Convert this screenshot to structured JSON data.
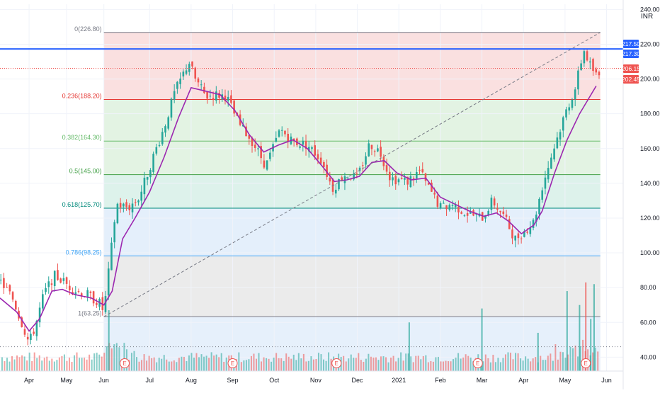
{
  "currency_label": "INR",
  "colors": {
    "up": "#26a69a",
    "down": "#ef5350",
    "ma_line": "#9c27b0",
    "resistance_line": "#2962ff",
    "diagonal": "#787b86",
    "zone_red": "#f8d6d6",
    "zone_green": "#d9efd9",
    "zone_teal": "#d2ede4",
    "zone_blue": "#dbeaf9",
    "zone_gray": "#e4e4e4"
  },
  "fib_levels": [
    {
      "label": "0(226.80)",
      "ratio": 0,
      "price": 226.8,
      "color": "#787b86"
    },
    {
      "label": "0.236(188.20)",
      "ratio": 0.236,
      "price": 188.2,
      "color": "#e53935"
    },
    {
      "label": "0.382(164.30)",
      "ratio": 0.382,
      "price": 164.3,
      "color": "#66bb6a"
    },
    {
      "label": "0.5(145.00)",
      "ratio": 0.5,
      "price": 145.0,
      "color": "#43a047"
    },
    {
      "label": "0.618(125.70)",
      "ratio": 0.618,
      "price": 125.7,
      "color": "#00897b"
    },
    {
      "label": "0.786(98.25)",
      "ratio": 0.786,
      "price": 98.25,
      "color": "#42a5f5"
    },
    {
      "label": "1(63.25)",
      "ratio": 1,
      "price": 63.25,
      "color": "#787b86"
    }
  ],
  "price_badges": [
    {
      "text": "217.50",
      "price": 217.5,
      "color": "#2962ff"
    },
    {
      "text": "217.30",
      "price": 217.3,
      "color": "#2962ff"
    },
    {
      "text": "206.15",
      "price": 206.15,
      "color": "#ef5350"
    },
    {
      "text": "202.45",
      "price": 202.45,
      "color": "#ef5350"
    }
  ],
  "earnings_marker": "E",
  "earnings_months": [
    3,
    5.6,
    8.1,
    11.5,
    14.1
  ],
  "chart_data": {
    "type": "candlestick",
    "y_axis_ticks": [
      "240.00",
      "220.00",
      "200.00",
      "180.00",
      "160.00",
      "140.00",
      "120.00",
      "100.00",
      "80.00",
      "60.00",
      "40.00"
    ],
    "y_tick_values": [
      240,
      220,
      200,
      180,
      160,
      140,
      120,
      100,
      80,
      60,
      40
    ],
    "ylim": [
      32,
      243
    ],
    "x_axis_ticks": [
      "Apr",
      "May",
      "Jun",
      "Jul",
      "Aug",
      "Sep",
      "Oct",
      "Nov",
      "Dec",
      "2021",
      "Feb",
      "Mar",
      "Apr",
      "May",
      "Jun"
    ],
    "x_tick_index": [
      0.7,
      1.6,
      2.5,
      3.6,
      4.6,
      5.6,
      6.6,
      7.6,
      8.6,
      9.6,
      10.6,
      11.6,
      12.6,
      13.6,
      14.6
    ],
    "xlim": [
      0,
      15.0
    ],
    "price_path": [
      [
        0,
        84
      ],
      [
        0.3,
        74
      ],
      [
        0.55,
        58
      ],
      [
        0.7,
        48
      ],
      [
        0.85,
        58
      ],
      [
        1.05,
        76
      ],
      [
        1.3,
        87
      ],
      [
        1.5,
        84
      ],
      [
        1.75,
        79
      ],
      [
        2.1,
        76
      ],
      [
        2.4,
        71
      ],
      [
        2.5,
        66
      ],
      [
        2.65,
        96
      ],
      [
        2.8,
        128
      ],
      [
        3.1,
        126
      ],
      [
        3.35,
        132
      ],
      [
        3.7,
        156
      ],
      [
        3.95,
        172
      ],
      [
        4.2,
        192
      ],
      [
        4.55,
        210
      ],
      [
        4.7,
        200
      ],
      [
        4.95,
        190
      ],
      [
        5.25,
        191
      ],
      [
        5.45,
        190
      ],
      [
        5.75,
        174
      ],
      [
        6.05,
        165
      ],
      [
        6.4,
        150
      ],
      [
        6.75,
        171
      ],
      [
        7.05,
        164
      ],
      [
        7.4,
        162
      ],
      [
        7.75,
        153
      ],
      [
        8.0,
        137
      ],
      [
        8.3,
        145
      ],
      [
        8.6,
        143
      ],
      [
        8.9,
        163
      ],
      [
        9.15,
        158
      ],
      [
        9.4,
        143
      ],
      [
        9.8,
        141
      ],
      [
        10.1,
        147
      ],
      [
        10.3,
        138
      ],
      [
        10.6,
        126
      ],
      [
        10.9,
        128
      ],
      [
        11.2,
        123
      ],
      [
        11.6,
        120
      ],
      [
        11.85,
        130
      ],
      [
        12.1,
        122
      ],
      [
        12.4,
        108
      ],
      [
        12.6,
        112
      ],
      [
        12.85,
        118
      ],
      [
        13.05,
        138
      ],
      [
        13.3,
        158
      ],
      [
        13.6,
        180
      ],
      [
        13.85,
        195
      ],
      [
        14.05,
        217
      ],
      [
        14.2,
        208
      ],
      [
        14.35,
        202
      ]
    ],
    "ma_path": [
      [
        0,
        74
      ],
      [
        0.4,
        66
      ],
      [
        0.7,
        55
      ],
      [
        0.95,
        62
      ],
      [
        1.25,
        78
      ],
      [
        1.5,
        79
      ],
      [
        1.8,
        76
      ],
      [
        2.2,
        74
      ],
      [
        2.5,
        70
      ],
      [
        2.7,
        78
      ],
      [
        2.95,
        108
      ],
      [
        3.25,
        120
      ],
      [
        3.6,
        135
      ],
      [
        3.95,
        155
      ],
      [
        4.3,
        178
      ],
      [
        4.6,
        195
      ],
      [
        4.95,
        193
      ],
      [
        5.3,
        191
      ],
      [
        5.65,
        182
      ],
      [
        6.0,
        168
      ],
      [
        6.35,
        158
      ],
      [
        6.7,
        162
      ],
      [
        7.05,
        165
      ],
      [
        7.4,
        160
      ],
      [
        7.75,
        150
      ],
      [
        8.05,
        141
      ],
      [
        8.35,
        142
      ],
      [
        8.65,
        144
      ],
      [
        8.95,
        152
      ],
      [
        9.25,
        153
      ],
      [
        9.55,
        146
      ],
      [
        9.9,
        142
      ],
      [
        10.25,
        143
      ],
      [
        10.6,
        132
      ],
      [
        10.95,
        128
      ],
      [
        11.3,
        124
      ],
      [
        11.65,
        121
      ],
      [
        11.95,
        123
      ],
      [
        12.25,
        118
      ],
      [
        12.55,
        111
      ],
      [
        12.85,
        116
      ],
      [
        13.05,
        124
      ],
      [
        13.35,
        146
      ],
      [
        13.65,
        165
      ],
      [
        13.95,
        180
      ],
      [
        14.2,
        190
      ],
      [
        14.35,
        196
      ]
    ],
    "volume_spikes": [
      {
        "month": 2.62,
        "level": 67
      },
      {
        "month": 9.85,
        "level": 60
      },
      {
        "month": 11.6,
        "level": 68
      },
      {
        "month": 12.95,
        "level": 54
      },
      {
        "month": 13.65,
        "level": 78
      },
      {
        "month": 13.95,
        "level": 70
      },
      {
        "month": 14.1,
        "level": 83
      },
      {
        "month": 14.22,
        "level": 62
      },
      {
        "month": 14.3,
        "level": 82
      }
    ],
    "volume_baseline": 35,
    "fib_start": {
      "month": 2.5,
      "price": 63.25
    },
    "fib_end": {
      "month": 14.45,
      "price": 226.8
    },
    "resistance_price": 217.3,
    "current_price_line": 206.15,
    "dotted_support": 46
  }
}
